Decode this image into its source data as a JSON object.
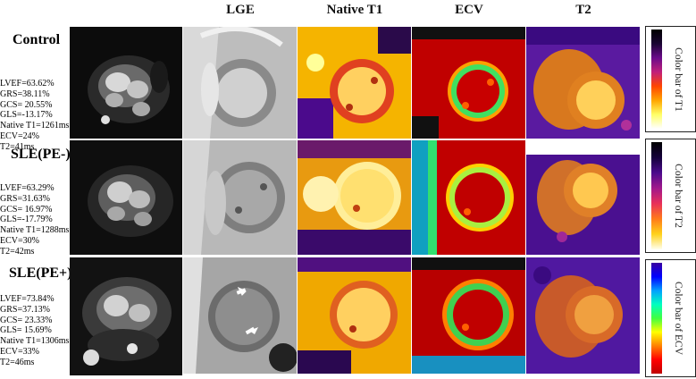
{
  "columns": {
    "lge": "LGE",
    "native_t1": "Native T1",
    "ecv": "ECV",
    "t2": "T2"
  },
  "rows": [
    {
      "label": "Control",
      "stats": [
        "LVEF=63.62%",
        "GRS=38.11%",
        "GCS= 20.55%",
        "GLS=-13.17%",
        "Native T1=1261ms",
        "ECV=24%",
        "T2=41ms"
      ]
    },
    {
      "label": "SLE(PE-)",
      "stats": [
        "LVEF=63.29%",
        "GRS=31.63%",
        "GCS= 16.97%",
        "GLS=-17.79%",
        "Native T1=1288ms",
        "ECV=30%",
        "T2=42ms"
      ]
    },
    {
      "label": "SLE(PE+)",
      "stats": [
        "LVEF=73.84%",
        "GRS=37.13%",
        "GCS= 23.33%",
        "GLS= 15.69%",
        "Native T1=1306ms",
        "ECV=33%",
        "T2=46ms"
      ]
    }
  ],
  "colorbars": [
    {
      "label": "Color bar of T1",
      "stops": [
        "#000000",
        "#1a0533",
        "#6a0a8a",
        "#c0207a",
        "#ff4500",
        "#ffa500",
        "#ffff66",
        "#ffffff"
      ]
    },
    {
      "label": "Color bar of T2",
      "stops": [
        "#000000",
        "#14003a",
        "#4b0a8c",
        "#a0188c",
        "#e8305a",
        "#ff7a1a",
        "#ffd21a",
        "#ffffee"
      ]
    },
    {
      "label": "Color bar of ECV",
      "stops": [
        "#3a00a0",
        "#0000ff",
        "#00a0ff",
        "#00ffc0",
        "#40ff40",
        "#ffff00",
        "#ff8000",
        "#ff0000",
        "#c00000"
      ]
    }
  ]
}
